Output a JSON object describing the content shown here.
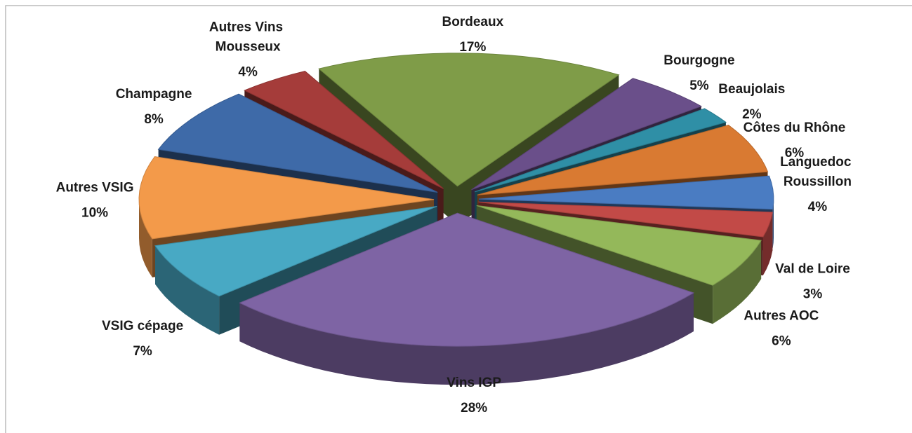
{
  "chart_data": {
    "type": "pie3d",
    "categories": [
      "Bordeaux",
      "Bourgogne",
      "Beaujolais",
      "Côtes du Rhône",
      "Languedoc Roussillon",
      "Val de Loire",
      "Autres AOC",
      "Vins IGP",
      "VSIG  cépage",
      "Autres VSIG",
      "Champagne",
      "Autres Vins Mousseux"
    ],
    "values": [
      17,
      5,
      2,
      6,
      4,
      3,
      6,
      28,
      7,
      10,
      8,
      4
    ],
    "value_labels": [
      "17%",
      "5%",
      "2%",
      "6%",
      "4%",
      "3%",
      "6%",
      "28%",
      "7%",
      "10%",
      "8%",
      "4%"
    ],
    "colors": [
      "#7f9c48",
      "#6a4f8a",
      "#2f8fa6",
      "#d97a32",
      "#4a7cc2",
      "#c24a47",
      "#94b85a",
      "#7e64a4",
      "#48a9c4",
      "#f39a4a",
      "#3e6aa8",
      "#a53c3a"
    ]
  }
}
